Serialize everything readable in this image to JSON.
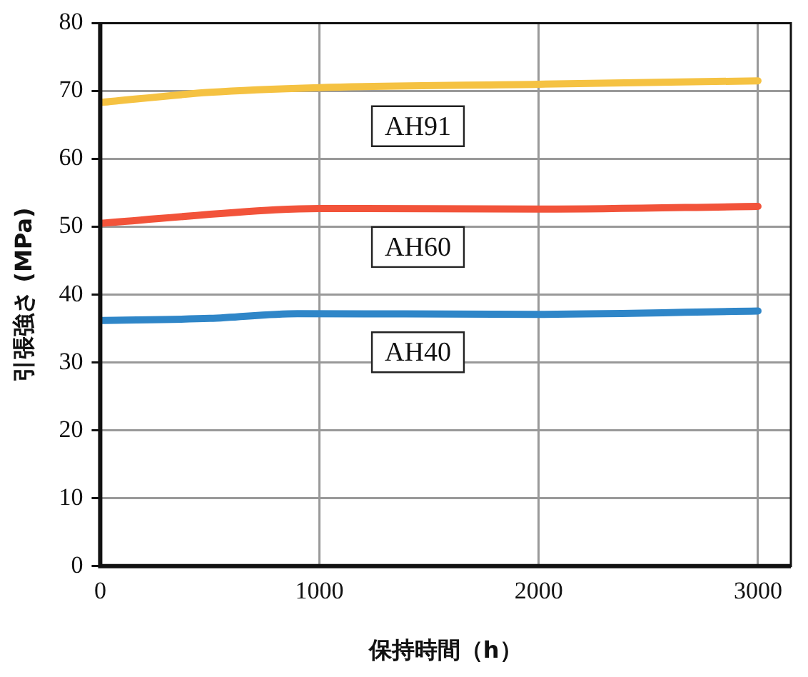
{
  "chart_data": {
    "type": "line",
    "xlabel": "保持時間（h）",
    "ylabel": "引張強さ (MPa)",
    "xlim": [
      0,
      3150
    ],
    "xticks": [
      0,
      1000,
      2000,
      3000
    ],
    "ylim": [
      0,
      80
    ],
    "yticks": [
      0,
      10,
      20,
      30,
      40,
      50,
      60,
      70,
      80
    ],
    "grid": true,
    "legend": false,
    "marker": "none",
    "line_style": "solid",
    "series": [
      {
        "name": "AH91",
        "color": "#f5c242",
        "x": [
          0,
          500,
          1000,
          2000,
          3000
        ],
        "values": [
          68.3,
          69.8,
          70.5,
          71,
          71.5
        ]
      },
      {
        "name": "AH60",
        "color": "#f2533a",
        "x": [
          0,
          800,
          1000,
          2000,
          3000
        ],
        "values": [
          50.5,
          52.5,
          52.7,
          52.6,
          53
        ]
      },
      {
        "name": "AH40",
        "color": "#2f86c8",
        "x": [
          0,
          500,
          900,
          2000,
          3000
        ],
        "values": [
          36.2,
          36.5,
          37.2,
          37.1,
          37.6
        ]
      }
    ]
  }
}
